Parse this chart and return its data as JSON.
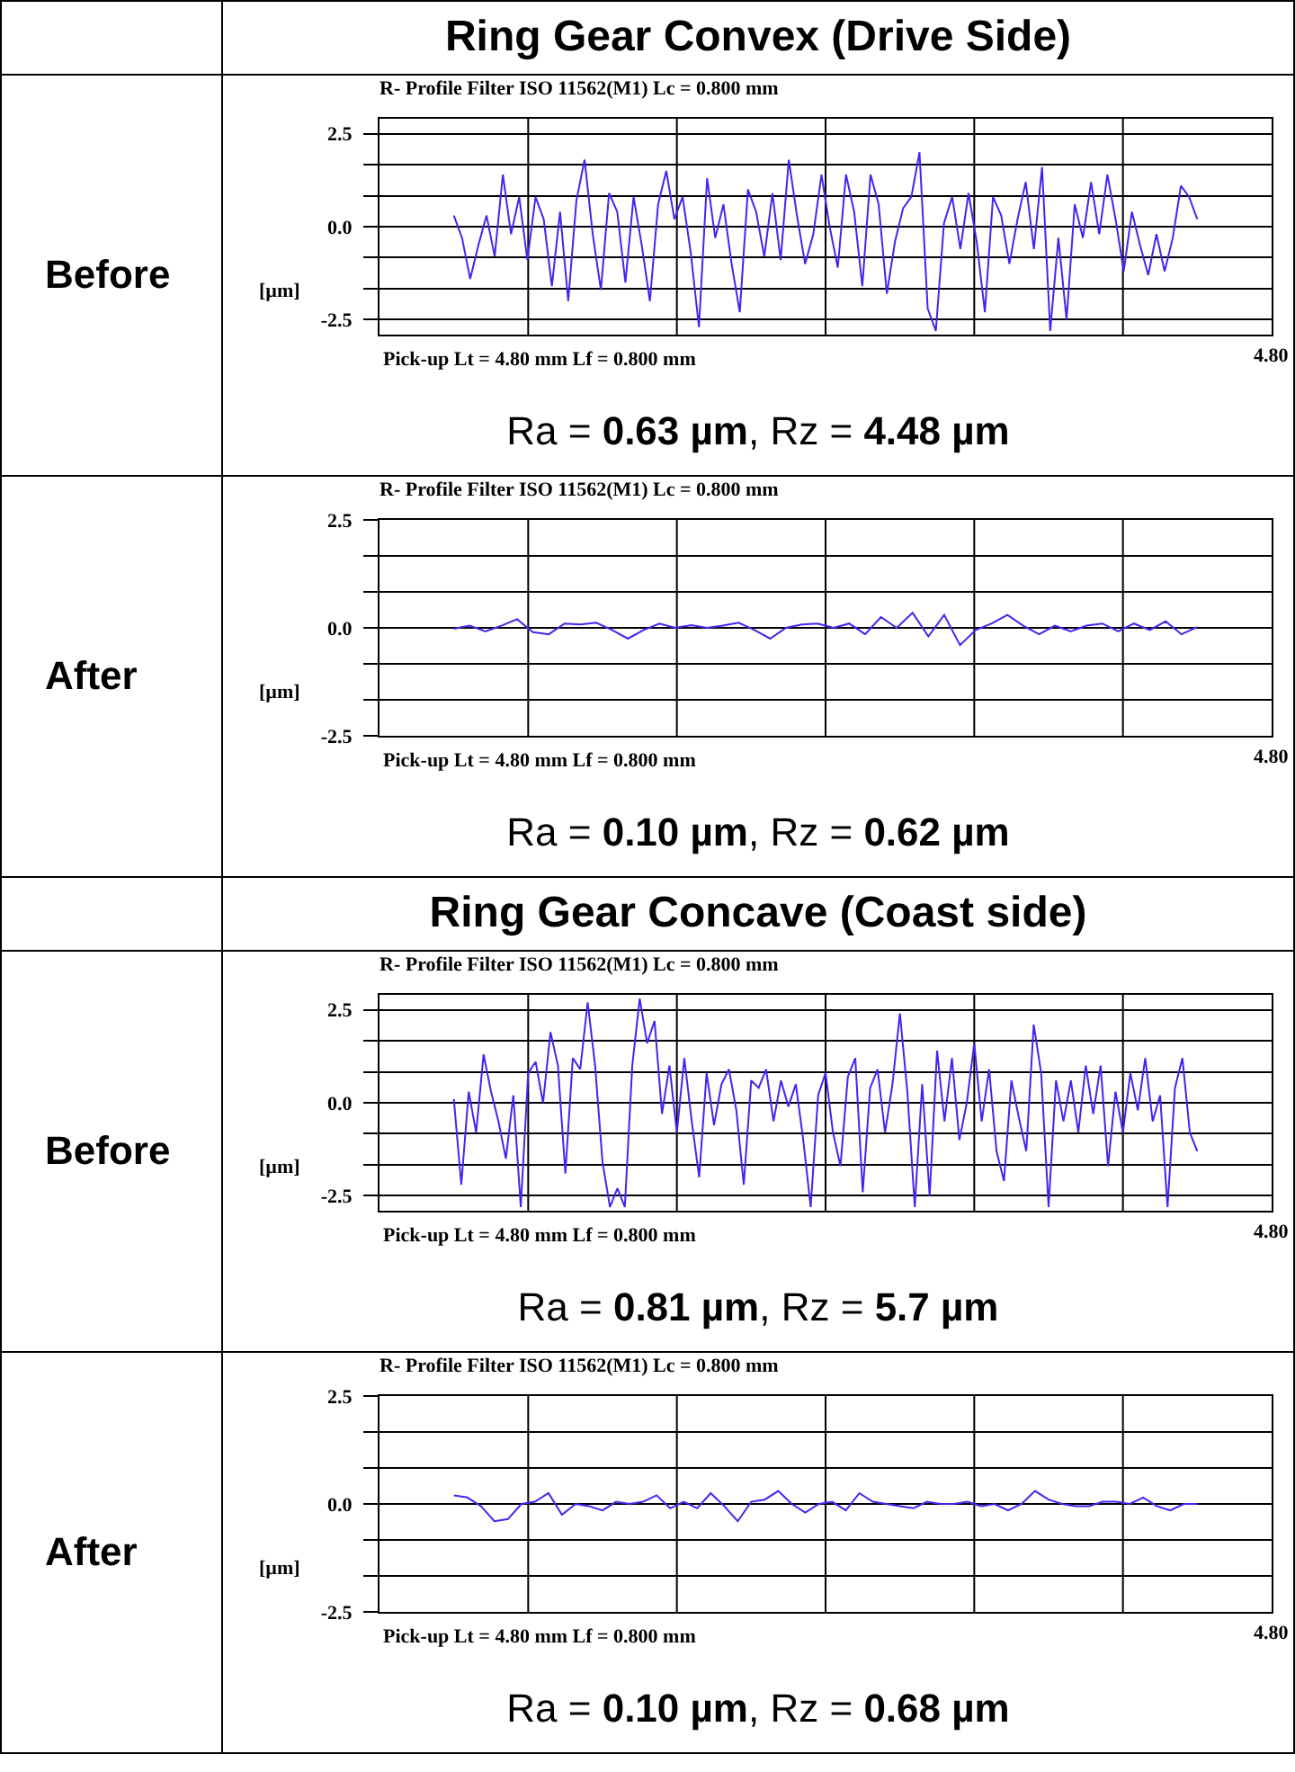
{
  "chart_data": [
    {
      "type": "line",
      "title": "Ring Gear Convex (Drive Side)",
      "subtitle": "R- Profile Filter ISO 11562(M1) Lc = 0.800 mm",
      "xlabel": "Pick-up Lt = 4.80 mm Lf = 0.800 mm",
      "ylabel": "[µm]",
      "annotations": [
        "Before",
        "Ra = 0.63 µm, Rz = 4.48 µm",
        "4.80"
      ],
      "color": "#4a22f0",
      "grid": true,
      "ylim": [
        -2.9,
        2.9
      ],
      "yticks": [
        {
          "value": -2.5,
          "label": "-2.5"
        },
        {
          "value": -1.667,
          "label": null
        },
        {
          "value": -0.833,
          "label": null
        },
        {
          "value": 0,
          "label": "0.0"
        },
        {
          "value": 0.833,
          "label": null
        },
        {
          "value": 1.667,
          "label": null
        },
        {
          "value": 2.5,
          "label": "2.5"
        }
      ],
      "categories": [
        null,
        null,
        null,
        null,
        null,
        null,
        null,
        null,
        null,
        null,
        null,
        null,
        null,
        null,
        null,
        null,
        null,
        null,
        null,
        null,
        null,
        null,
        null,
        null,
        null,
        null,
        null,
        null,
        null,
        null,
        null,
        null,
        null,
        null,
        null,
        null,
        null,
        null,
        null,
        null,
        null,
        null,
        null,
        null,
        null,
        null,
        null,
        null,
        null,
        null,
        null,
        null,
        null,
        null,
        null,
        null,
        null,
        null,
        null,
        null,
        null,
        null,
        null,
        null,
        null,
        null,
        null,
        null,
        null,
        null,
        null,
        null,
        null,
        null,
        null,
        null,
        null,
        null,
        null,
        null,
        null,
        null,
        null,
        null,
        null,
        null,
        null,
        null,
        null,
        null,
        null,
        null
      ],
      "values": [
        0.3,
        -0.3,
        -1.4,
        -0.5,
        0.3,
        -0.8,
        1.4,
        -0.2,
        0.8,
        -0.9,
        0.8,
        0.2,
        -1.6,
        0.4,
        -2.0,
        0.7,
        1.8,
        -0.2,
        -1.7,
        0.9,
        0.4,
        -1.5,
        0.8,
        -0.5,
        -2.0,
        0.6,
        1.5,
        0.2,
        0.8,
        -0.7,
        -2.7,
        1.3,
        -0.3,
        0.6,
        -1.0,
        -2.3,
        1.0,
        0.4,
        -0.8,
        0.9,
        -0.9,
        1.8,
        0.3,
        -1.0,
        -0.2,
        1.4,
        0.0,
        -1.1,
        1.4,
        0.4,
        -1.6,
        1.4,
        0.6,
        -1.8,
        -0.4,
        0.5,
        0.8,
        2.0,
        -2.2,
        -2.8,
        0.1,
        0.8,
        -0.6,
        0.9,
        -0.4,
        -2.3,
        0.8,
        0.3,
        -1.0,
        0.2,
        1.2,
        -0.6,
        1.6,
        -2.8,
        -0.3,
        -2.5,
        0.6,
        -0.3,
        1.2,
        -0.2,
        1.4,
        0.2,
        -1.2,
        0.4,
        -0.5,
        -1.3,
        -0.2,
        -1.2,
        -0.3,
        1.1,
        0.8,
        0.2
      ]
    },
    {
      "type": "line",
      "subtitle": "R- Profile Filter ISO 11562(M1) Lc = 0.800 mm",
      "xlabel": "Pick-up Lt = 4.80 mm Lf = 0.800 mm",
      "ylabel": "[µm]",
      "annotations": [
        "After",
        "Ra = 0.10 µm, Rz = 0.62 µm",
        "4.80"
      ],
      "color": "#4a22f0",
      "grid": true,
      "ylim": [
        -2.5,
        2.5
      ],
      "yticks": [
        {
          "value": -2.5,
          "label": "-2.5"
        },
        {
          "value": -1.667,
          "label": null
        },
        {
          "value": -0.833,
          "label": null
        },
        {
          "value": 0,
          "label": "0.0"
        },
        {
          "value": 0.833,
          "label": null
        },
        {
          "value": 1.667,
          "label": null
        },
        {
          "value": 2.5,
          "label": "2.5"
        }
      ],
      "categories": [
        null,
        null,
        null,
        null,
        null,
        null,
        null,
        null,
        null,
        null,
        null,
        null,
        null,
        null,
        null,
        null,
        null,
        null,
        null,
        null,
        null,
        null,
        null,
        null,
        null,
        null,
        null,
        null,
        null,
        null,
        null,
        null,
        null,
        null,
        null,
        null,
        null,
        null,
        null,
        null,
        null,
        null,
        null,
        null,
        null,
        null,
        null,
        null
      ],
      "values": [
        -0.02,
        0.05,
        -0.08,
        0.05,
        0.2,
        -0.1,
        -0.15,
        0.1,
        0.08,
        0.12,
        -0.05,
        -0.25,
        -0.05,
        0.1,
        0.0,
        0.06,
        0.0,
        0.05,
        0.12,
        -0.05,
        -0.25,
        0.0,
        0.08,
        0.1,
        0.0,
        0.1,
        -0.15,
        0.25,
        0.0,
        0.35,
        -0.2,
        0.3,
        -0.4,
        -0.05,
        0.1,
        0.3,
        0.05,
        -0.15,
        0.05,
        -0.08,
        0.05,
        0.1,
        -0.08,
        0.1,
        -0.05,
        0.15,
        -0.15,
        0.02
      ]
    },
    {
      "type": "line",
      "title": "Ring Gear Concave (Coast side)",
      "subtitle": "R- Profile Filter ISO 11562(M1) Lc = 0.800 mm",
      "xlabel": "Pick-up Lt = 4.80 mm Lf = 0.800 mm",
      "ylabel": "[µm]",
      "annotations": [
        "Before",
        "Ra = 0.81 µm, Rz = 5.7 µm",
        "4.80"
      ],
      "color": "#4a22f0",
      "grid": true,
      "ylim": [
        -2.9,
        2.9
      ],
      "yticks": [
        {
          "value": -2.5,
          "label": "-2.5"
        },
        {
          "value": -1.667,
          "label": null
        },
        {
          "value": -0.833,
          "label": null
        },
        {
          "value": 0,
          "label": "0.0"
        },
        {
          "value": 0.833,
          "label": null
        },
        {
          "value": 1.667,
          "label": null
        },
        {
          "value": 2.5,
          "label": "2.5"
        }
      ],
      "categories": [
        null,
        null,
        null,
        null,
        null,
        null,
        null,
        null,
        null,
        null,
        null,
        null,
        null,
        null,
        null,
        null,
        null,
        null,
        null,
        null,
        null,
        null,
        null,
        null,
        null,
        null,
        null,
        null,
        null,
        null,
        null,
        null,
        null,
        null,
        null,
        null,
        null,
        null,
        null,
        null,
        null,
        null,
        null,
        null,
        null,
        null,
        null,
        null,
        null,
        null,
        null,
        null,
        null,
        null,
        null,
        null,
        null,
        null,
        null,
        null,
        null,
        null,
        null,
        null,
        null,
        null,
        null,
        null,
        null,
        null,
        null,
        null,
        null,
        null,
        null,
        null,
        null,
        null,
        null,
        null,
        null,
        null,
        null,
        null,
        null,
        null,
        null,
        null,
        null,
        null,
        null,
        null,
        null,
        null,
        null,
        null,
        null,
        null,
        null,
        null,
        null
      ],
      "values": [
        0.1,
        -2.2,
        0.3,
        -0.8,
        1.3,
        0.3,
        -0.5,
        -1.5,
        0.2,
        -2.8,
        0.8,
        1.1,
        0.0,
        1.9,
        1.0,
        -1.9,
        1.2,
        0.9,
        2.7,
        1.0,
        -1.6,
        -2.8,
        -2.3,
        -2.8,
        1.0,
        2.8,
        1.6,
        2.2,
        -0.3,
        1.0,
        -0.8,
        1.2,
        -0.5,
        -2.0,
        0.8,
        -0.6,
        0.5,
        0.9,
        -0.2,
        -2.2,
        0.6,
        0.4,
        0.9,
        -0.5,
        0.6,
        -0.1,
        0.5,
        -1.0,
        -2.8,
        0.2,
        0.8,
        -0.8,
        -1.7,
        0.7,
        1.2,
        -2.4,
        0.4,
        0.9,
        -0.8,
        0.5,
        2.4,
        0.3,
        -2.8,
        0.5,
        -2.5,
        1.4,
        -0.5,
        1.2,
        -1.0,
        0.0,
        1.6,
        -0.5,
        0.9,
        -1.3,
        -2.1,
        0.6,
        -0.4,
        -1.3,
        2.1,
        0.8,
        -2.8,
        0.6,
        -0.5,
        0.6,
        -0.8,
        1.0,
        -0.3,
        1.0,
        -1.7,
        0.3,
        -0.8,
        0.8,
        -0.2,
        1.2,
        -0.5,
        0.2,
        -2.8,
        0.4,
        1.2,
        -0.8,
        -1.3
      ]
    },
    {
      "type": "line",
      "subtitle": "R- Profile Filter ISO 11562(M1) Lc = 0.800 mm",
      "xlabel": "Pick-up Lt = 4.80 mm Lf = 0.800 mm",
      "ylabel": "[µm]",
      "annotations": [
        "After",
        "Ra = 0.10 µm, Rz = 0.68 µm",
        "4.80"
      ],
      "color": "#4a22f0",
      "grid": true,
      "ylim": [
        -2.5,
        2.5
      ],
      "yticks": [
        {
          "value": -2.5,
          "label": "-2.5"
        },
        {
          "value": -1.667,
          "label": null
        },
        {
          "value": -0.833,
          "label": null
        },
        {
          "value": 0,
          "label": "0.0"
        },
        {
          "value": 0.833,
          "label": null
        },
        {
          "value": 1.667,
          "label": null
        },
        {
          "value": 2.5,
          "label": "2.5"
        }
      ],
      "categories": [
        null,
        null,
        null,
        null,
        null,
        null,
        null,
        null,
        null,
        null,
        null,
        null,
        null,
        null,
        null,
        null,
        null,
        null,
        null,
        null,
        null,
        null,
        null,
        null,
        null,
        null,
        null,
        null,
        null,
        null,
        null,
        null,
        null,
        null,
        null,
        null,
        null,
        null,
        null,
        null,
        null,
        null,
        null,
        null,
        null,
        null,
        null,
        null,
        null,
        null,
        null,
        null,
        null,
        null,
        null,
        null
      ],
      "values": [
        0.2,
        0.15,
        -0.05,
        -0.4,
        -0.35,
        0.0,
        0.05,
        0.25,
        -0.25,
        0.0,
        -0.05,
        -0.15,
        0.05,
        0.0,
        0.05,
        0.2,
        -0.1,
        0.05,
        -0.1,
        0.25,
        -0.05,
        -0.4,
        0.05,
        0.1,
        0.3,
        0.0,
        -0.2,
        0.0,
        0.05,
        -0.15,
        0.25,
        0.05,
        0.0,
        -0.05,
        -0.1,
        0.05,
        0.0,
        0.0,
        0.05,
        -0.05,
        0.0,
        -0.15,
        0.0,
        0.3,
        0.1,
        0.0,
        -0.05,
        -0.05,
        0.05,
        0.05,
        0.0,
        0.15,
        -0.05,
        -0.15,
        0.0,
        0.0
      ]
    }
  ]
}
